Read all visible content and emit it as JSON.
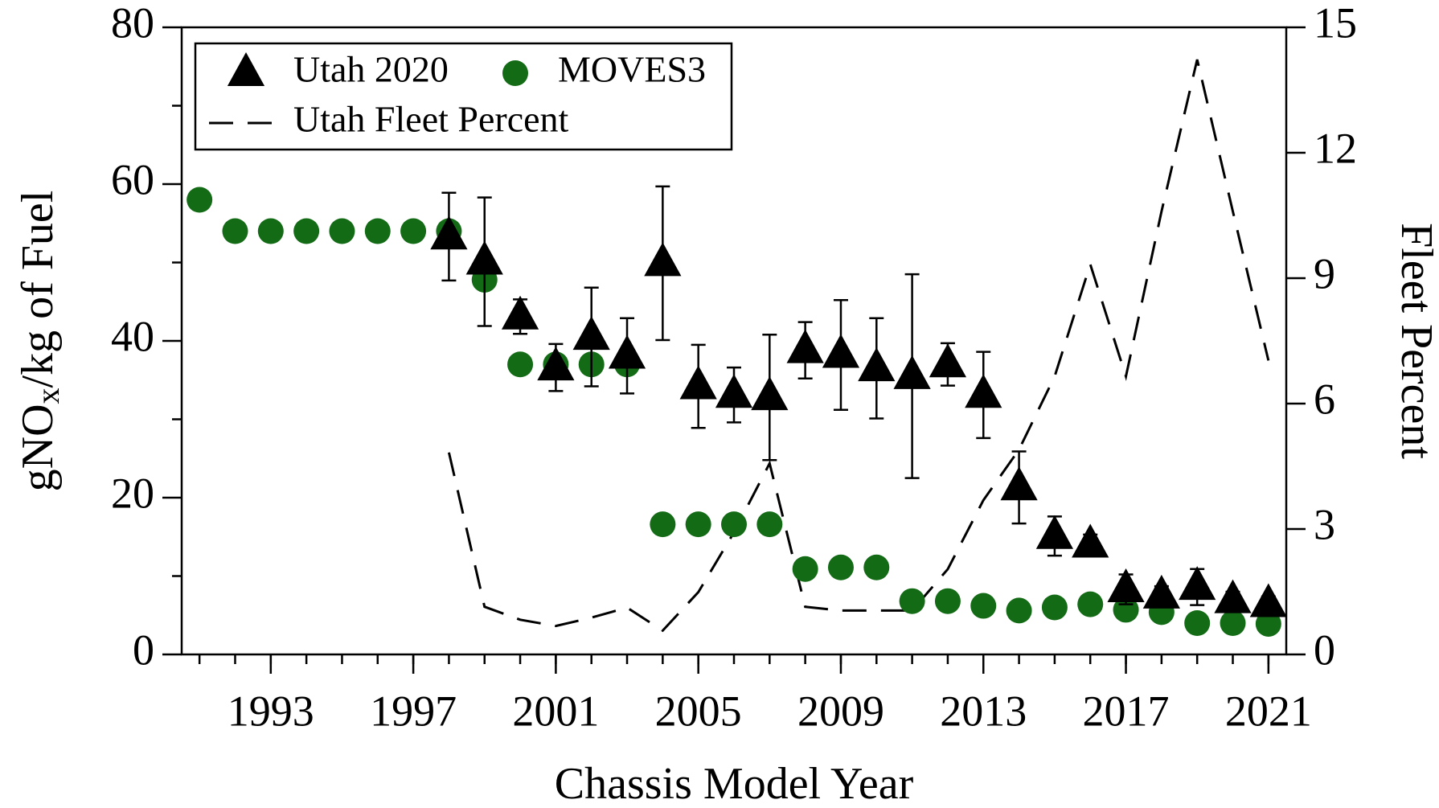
{
  "chart_data": {
    "type": "scatter",
    "xlabel": "Chassis Model Year",
    "ylabel": [
      "gNO",
      "x",
      "/kg of Fuel"
    ],
    "y2label": "Fleet Percent",
    "xlim": [
      1990.5,
      2021.5
    ],
    "xticks": [
      1993,
      1997,
      2001,
      2005,
      2009,
      2013,
      2017,
      2021
    ],
    "xticks_minor": [
      1991,
      1992,
      1993,
      1994,
      1995,
      1996,
      1997,
      1998,
      1999,
      2000,
      2001,
      2002,
      2003,
      2004,
      2005,
      2006,
      2007,
      2008,
      2009,
      2010,
      2011,
      2012,
      2013,
      2014,
      2015,
      2016,
      2017,
      2018,
      2019,
      2020,
      2021
    ],
    "ylim": [
      0,
      80
    ],
    "yticks": [
      0,
      20,
      40,
      60,
      80
    ],
    "yticks_minor": [
      10,
      30,
      50,
      70
    ],
    "y2lim": [
      0,
      15
    ],
    "y2ticks": [
      0,
      3,
      6,
      9,
      12,
      15
    ],
    "legend": "upper left",
    "series": [
      {
        "name": "Utah 2020",
        "color": "#000000",
        "marker": "triangle",
        "x": [
          1998,
          1999,
          2000,
          2001,
          2002,
          2003,
          2004,
          2005,
          2006,
          2007,
          2008,
          2009,
          2010,
          2011,
          2012,
          2013,
          2014,
          2015,
          2016,
          2017,
          2018,
          2019,
          2020,
          2021
        ],
        "values": [
          53.3,
          50.1,
          43.1,
          36.6,
          40.5,
          38.1,
          49.9,
          34.2,
          33.1,
          32.8,
          38.8,
          38.2,
          36.5,
          35.5,
          37,
          33.1,
          21.3,
          15.1,
          14,
          8.3,
          7.5,
          8.6,
          6.9,
          6.4
        ],
        "errors": [
          5.6,
          8.2,
          2.2,
          3,
          6.3,
          4.8,
          9.8,
          5.3,
          3.5,
          8,
          3.6,
          7,
          6.4,
          13,
          2.7,
          5.5,
          4.6,
          2.5,
          1.3,
          1.9,
          1.2,
          2.3,
          1.1,
          1
        ]
      },
      {
        "name": "MOVES3",
        "color": "#136b16",
        "marker": "circle",
        "x": [
          1991,
          1992,
          1993,
          1994,
          1995,
          1996,
          1997,
          1998,
          1999,
          2000,
          2001,
          2002,
          2003,
          2004,
          2005,
          2006,
          2007,
          2008,
          2009,
          2010,
          2011,
          2012,
          2013,
          2014,
          2015,
          2016,
          2017,
          2018,
          2019,
          2020,
          2021
        ],
        "values": [
          58,
          54,
          54,
          54,
          54,
          54,
          54,
          54,
          47.8,
          37,
          37,
          37,
          37,
          16.6,
          16.6,
          16.6,
          16.6,
          10.9,
          11.1,
          11.1,
          6.8,
          6.8,
          6.2,
          5.6,
          6,
          6.4,
          5.7,
          5.4,
          4,
          4,
          3.9
        ]
      },
      {
        "name": "Utah Fleet Percent",
        "color": "#000000",
        "marker": "dashed-line",
        "axis": "y2",
        "x": [
          1998,
          1999,
          2000,
          2001,
          2002,
          2003,
          2004,
          2005,
          2006,
          2007,
          2008,
          2009,
          2010,
          2011,
          2012,
          2013,
          2014,
          2015,
          2016,
          2017,
          2018,
          2019,
          2020,
          2021
        ],
        "values": [
          4.83,
          1.14,
          0.83,
          0.68,
          0.88,
          1.12,
          0.57,
          1.49,
          2.92,
          4.57,
          1.14,
          1.05,
          1.05,
          1.05,
          2.04,
          3.69,
          4.9,
          6.65,
          9.33,
          6.65,
          10.6,
          14.23,
          10.6,
          7.03
        ]
      }
    ]
  }
}
